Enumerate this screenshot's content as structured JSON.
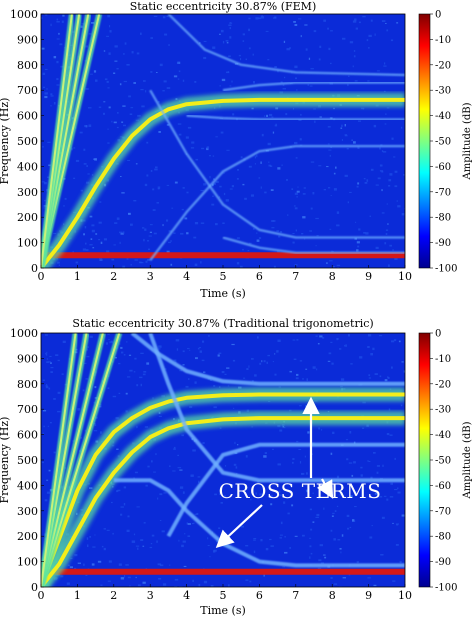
{
  "colors": {
    "background": "#0b2bd8",
    "noise": "#1d4de8",
    "harmonic_core": "#f3ee1a",
    "harmonic_glow": "#5ce3a0",
    "thin_line": "#6fb0ff",
    "fundamental": "#d41818",
    "annotation": "#ffffff"
  },
  "chart_data": [
    {
      "type": "heatmap",
      "title": "Static eccentricity 30.87% (FEM)",
      "xlabel": "Time (s)",
      "ylabel": "Frequency (Hz)",
      "colorbar_label": "Amplitude (dB)",
      "xlim": [
        0,
        10
      ],
      "ylim": [
        0,
        1000
      ],
      "clim": [
        -100,
        0
      ],
      "x_ticks": [
        "0",
        "1",
        "2",
        "3",
        "4",
        "5",
        "6",
        "7",
        "8",
        "9",
        "10"
      ],
      "y_ticks": [
        "0",
        "100",
        "200",
        "300",
        "400",
        "500",
        "600",
        "700",
        "800",
        "900",
        "1000"
      ],
      "colorbar_ticks": [
        "0",
        "-10",
        "-20",
        "-30",
        "-40",
        "-50",
        "-60",
        "-70",
        "-80",
        "-90",
        "-100"
      ],
      "colormap": "jet",
      "ridges": [
        {
          "kind": "fundamental",
          "time": [
            0,
            10
          ],
          "freq": [
            50,
            50
          ],
          "level_db": -5
        },
        {
          "kind": "harmonic",
          "time": [
            0,
            0.5,
            1,
            1.5,
            2,
            2.5,
            3,
            3.5,
            4,
            5,
            6,
            10
          ],
          "freq": [
            0,
            90,
            200,
            320,
            430,
            520,
            585,
            625,
            645,
            658,
            662,
            662
          ],
          "level_db": -45
        },
        {
          "kind": "fast",
          "time": [
            0,
            1.6
          ],
          "freq": [
            0,
            1000
          ],
          "level_db": -60
        },
        {
          "kind": "fast",
          "time": [
            0,
            1.3
          ],
          "freq": [
            0,
            1000
          ],
          "level_db": -60
        },
        {
          "kind": "fast",
          "time": [
            0,
            1.05
          ],
          "freq": [
            0,
            1000
          ],
          "level_db": -60
        },
        {
          "kind": "fast",
          "time": [
            0,
            0.85
          ],
          "freq": [
            0,
            1000
          ],
          "level_db": -60
        },
        {
          "kind": "faint",
          "time": [
            3.5,
            4.5,
            5.5,
            7,
            10
          ],
          "freq": [
            1000,
            860,
            800,
            770,
            760
          ],
          "level_db": -75
        },
        {
          "kind": "faint",
          "time": [
            5,
            6,
            7,
            10
          ],
          "freq": [
            700,
            720,
            730,
            730
          ],
          "level_db": -80
        },
        {
          "kind": "faint",
          "time": [
            4,
            5,
            6,
            7,
            10
          ],
          "freq": [
            600,
            590,
            585,
            585,
            585
          ],
          "level_db": -80
        },
        {
          "kind": "faint",
          "time": [
            3,
            4,
            5,
            6,
            7,
            10
          ],
          "freq": [
            700,
            450,
            250,
            150,
            120,
            120
          ],
          "level_db": -80
        },
        {
          "kind": "faint",
          "time": [
            3,
            4,
            5,
            6,
            7,
            10
          ],
          "freq": [
            30,
            220,
            380,
            460,
            480,
            480
          ],
          "level_db": -80
        },
        {
          "kind": "faint",
          "time": [
            5,
            6,
            7,
            10
          ],
          "freq": [
            120,
            80,
            60,
            60
          ],
          "level_db": -85
        },
        {
          "kind": "faint",
          "time": [
            0,
            10
          ],
          "freq": [
            25,
            25
          ],
          "level_db": -80
        }
      ]
    },
    {
      "type": "heatmap",
      "title": "Static eccentricity 30.87% (Traditional trigonometric)",
      "xlabel": "Time (s)",
      "ylabel": "Frequency (Hz)",
      "colorbar_label": "Amplitude (dB)",
      "xlim": [
        0,
        10
      ],
      "ylim": [
        0,
        1000
      ],
      "clim": [
        -100,
        0
      ],
      "x_ticks": [
        "0",
        "1",
        "2",
        "3",
        "4",
        "5",
        "6",
        "7",
        "8",
        "9",
        "10"
      ],
      "y_ticks": [
        "0",
        "100",
        "200",
        "300",
        "400",
        "500",
        "600",
        "700",
        "800",
        "900",
        "1000"
      ],
      "colorbar_ticks": [
        "0",
        "-10",
        "-20",
        "-30",
        "-40",
        "-50",
        "-60",
        "-70",
        "-80",
        "-90",
        "-100"
      ],
      "colormap": "jet",
      "annotation": "CROSS TERMS",
      "ridges": [
        {
          "kind": "fundamental",
          "time": [
            0,
            10
          ],
          "freq": [
            60,
            60
          ],
          "level_db": -5
        },
        {
          "kind": "harmonic",
          "time": [
            0,
            0.5,
            1,
            1.5,
            2,
            2.5,
            3,
            3.5,
            4,
            5,
            6,
            10
          ],
          "freq": [
            0,
            190,
            380,
            520,
            610,
            665,
            705,
            730,
            745,
            755,
            758,
            758
          ],
          "level_db": -45
        },
        {
          "kind": "harmonic",
          "time": [
            0,
            0.5,
            1,
            1.5,
            2,
            2.5,
            3,
            3.5,
            4,
            5,
            6,
            10
          ],
          "freq": [
            0,
            90,
            220,
            350,
            450,
            530,
            590,
            625,
            645,
            660,
            665,
            665
          ],
          "level_db": -45
        },
        {
          "kind": "fast",
          "time": [
            0,
            2.15
          ],
          "freq": [
            0,
            1000
          ],
          "level_db": -60
        },
        {
          "kind": "fast",
          "time": [
            0,
            1.7
          ],
          "freq": [
            0,
            1000
          ],
          "level_db": -60
        },
        {
          "kind": "fast",
          "time": [
            0,
            1.25
          ],
          "freq": [
            0,
            1000
          ],
          "level_db": -60
        },
        {
          "kind": "fast",
          "time": [
            0,
            0.95
          ],
          "freq": [
            0,
            1000
          ],
          "level_db": -60
        },
        {
          "kind": "cross",
          "time": [
            2.5,
            3.2,
            4,
            5,
            6,
            7,
            10
          ],
          "freq": [
            1000,
            920,
            850,
            810,
            800,
            800,
            800
          ],
          "level_db": -65
        },
        {
          "kind": "cross",
          "time": [
            2,
            3,
            3.5,
            4,
            5,
            6,
            7,
            10
          ],
          "freq": [
            420,
            420,
            380,
            300,
            170,
            100,
            85,
            85
          ],
          "level_db": -65
        },
        {
          "kind": "cross",
          "time": [
            3,
            3.5,
            4,
            5,
            6,
            10
          ],
          "freq": [
            1000,
            800,
            620,
            450,
            420,
            420
          ],
          "level_db": -70
        },
        {
          "kind": "cross",
          "time": [
            3.5,
            4,
            5,
            6,
            10
          ],
          "freq": [
            200,
            330,
            520,
            560,
            560
          ],
          "level_db": -75
        },
        {
          "kind": "cross",
          "time": [
            0,
            10
          ],
          "freq": [
            30,
            30
          ],
          "level_db": -75
        }
      ]
    }
  ]
}
